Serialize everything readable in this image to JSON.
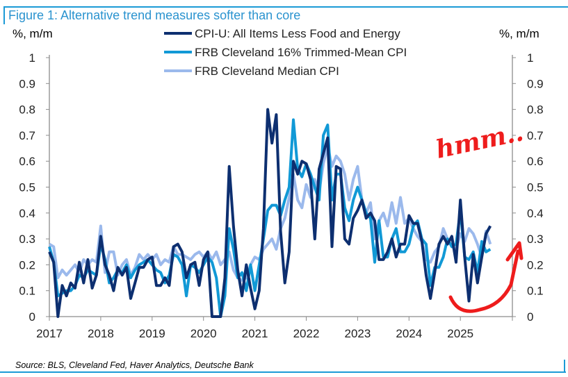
{
  "figure_title": "Figure 1: Alternative trend measures softer than core",
  "source": "Source: BLS, Cleveland Fed, Haver Analytics, Deutsche Bank",
  "annotation": "hmm..",
  "chart_data": {
    "type": "line",
    "title": "Figure 1: Alternative trend measures softer than core",
    "ylabel_left": "%, m/m",
    "ylabel_right": "%, m/m",
    "ylim": [
      0,
      1
    ],
    "yticks": [
      "0",
      "0.1",
      "0.2",
      "0.3",
      "0.4",
      "0.5",
      "0.6",
      "0.7",
      "0.8",
      "0.9",
      "1"
    ],
    "xticks": [
      "2017",
      "2018",
      "2019",
      "2020",
      "2021",
      "2022",
      "2023",
      "2024",
      "2025"
    ],
    "x_start": "2017-01",
    "frequency": "monthly",
    "legend_position": "top-center",
    "grid": false,
    "series": [
      {
        "name": "CPI-U: All Items Less Food and Energy",
        "color": "#0d2f70",
        "values": [
          0.25,
          0.21,
          0.0,
          0.12,
          0.08,
          0.13,
          0.11,
          0.21,
          0.13,
          0.22,
          0.11,
          0.16,
          0.31,
          0.2,
          0.16,
          0.1,
          0.19,
          0.16,
          0.19,
          0.07,
          0.13,
          0.19,
          0.19,
          0.22,
          0.23,
          0.12,
          0.12,
          0.15,
          0.12,
          0.27,
          0.28,
          0.25,
          0.15,
          0.2,
          0.21,
          0.12,
          0.22,
          0.25,
          0.0,
          0.0,
          0.0,
          0.15,
          0.58,
          0.35,
          0.18,
          0.08,
          0.2,
          0.11,
          0.03,
          0.1,
          0.34,
          0.8,
          0.67,
          0.78,
          0.33,
          0.13,
          0.25,
          0.6,
          0.55,
          0.6,
          0.59,
          0.53,
          0.3,
          0.57,
          0.63,
          0.69,
          0.27,
          0.58,
          0.57,
          0.3,
          0.28,
          0.38,
          0.41,
          0.45,
          0.38,
          0.4,
          0.37,
          0.22,
          0.22,
          0.25,
          0.3,
          0.23,
          0.28,
          0.28,
          0.39,
          0.36,
          0.36,
          0.29,
          0.16,
          0.07,
          0.17,
          0.28,
          0.31,
          0.28,
          0.31,
          0.21,
          0.45,
          0.23,
          0.06,
          0.24,
          0.13,
          0.23,
          0.32,
          0.35
        ]
      },
      {
        "name": "FRB Cleveland 16% Trimmed-Mean CPI",
        "color": "#1199d6",
        "values": [
          0.27,
          0.21,
          0.08,
          0.09,
          0.1,
          0.1,
          0.12,
          0.16,
          0.15,
          0.18,
          0.17,
          0.16,
          0.28,
          0.22,
          0.13,
          0.15,
          0.18,
          0.17,
          0.2,
          0.15,
          0.18,
          0.2,
          0.21,
          0.22,
          0.2,
          0.18,
          0.17,
          0.13,
          0.16,
          0.24,
          0.23,
          0.2,
          0.08,
          0.2,
          0.19,
          0.17,
          0.2,
          0.23,
          0.21,
          0.15,
          0.0,
          0.08,
          0.34,
          0.26,
          0.15,
          0.17,
          0.1,
          0.2,
          0.1,
          0.2,
          0.3,
          0.41,
          0.43,
          0.43,
          0.39,
          0.45,
          0.5,
          0.76,
          0.57,
          0.54,
          0.59,
          0.55,
          0.5,
          0.45,
          0.7,
          0.74,
          0.45,
          0.55,
          0.55,
          0.42,
          0.37,
          0.45,
          0.5,
          0.45,
          0.4,
          0.38,
          0.21,
          0.37,
          0.23,
          0.23,
          0.3,
          0.34,
          0.25,
          0.25,
          0.28,
          0.35,
          0.37,
          0.3,
          0.28,
          0.12,
          0.19,
          0.19,
          0.23,
          0.3,
          0.27,
          0.28,
          0.41,
          0.23,
          0.22,
          0.25,
          0.17,
          0.29,
          0.25,
          0.26
        ]
      },
      {
        "name": "FRB Cleveland Median CPI",
        "color": "#9bb9ec",
        "values": [
          0.28,
          0.27,
          0.15,
          0.18,
          0.16,
          0.18,
          0.2,
          0.17,
          0.22,
          0.2,
          0.22,
          0.21,
          0.35,
          0.17,
          0.25,
          0.25,
          0.16,
          0.2,
          0.22,
          0.16,
          0.19,
          0.24,
          0.22,
          0.24,
          0.22,
          0.24,
          0.2,
          0.22,
          0.21,
          0.27,
          0.24,
          0.24,
          0.23,
          0.22,
          0.24,
          0.25,
          0.23,
          0.25,
          0.22,
          0.25,
          0.2,
          0.22,
          0.25,
          0.18,
          0.15,
          0.14,
          0.15,
          0.2,
          0.23,
          0.22,
          0.26,
          0.28,
          0.3,
          0.26,
          0.34,
          0.38,
          0.46,
          0.55,
          0.45,
          0.42,
          0.51,
          0.46,
          0.53,
          0.48,
          0.59,
          0.66,
          0.58,
          0.62,
          0.6,
          0.55,
          0.45,
          0.53,
          0.58,
          0.45,
          0.4,
          0.44,
          0.3,
          0.37,
          0.4,
          0.35,
          0.44,
          0.36,
          0.46,
          0.36,
          0.38,
          0.34,
          0.31,
          0.29,
          0.22,
          0.21,
          0.25,
          0.27,
          0.34,
          0.3,
          0.27,
          0.26,
          0.32,
          0.29,
          0.34,
          0.32,
          0.28,
          0.23,
          0.33,
          0.28
        ]
      }
    ]
  }
}
